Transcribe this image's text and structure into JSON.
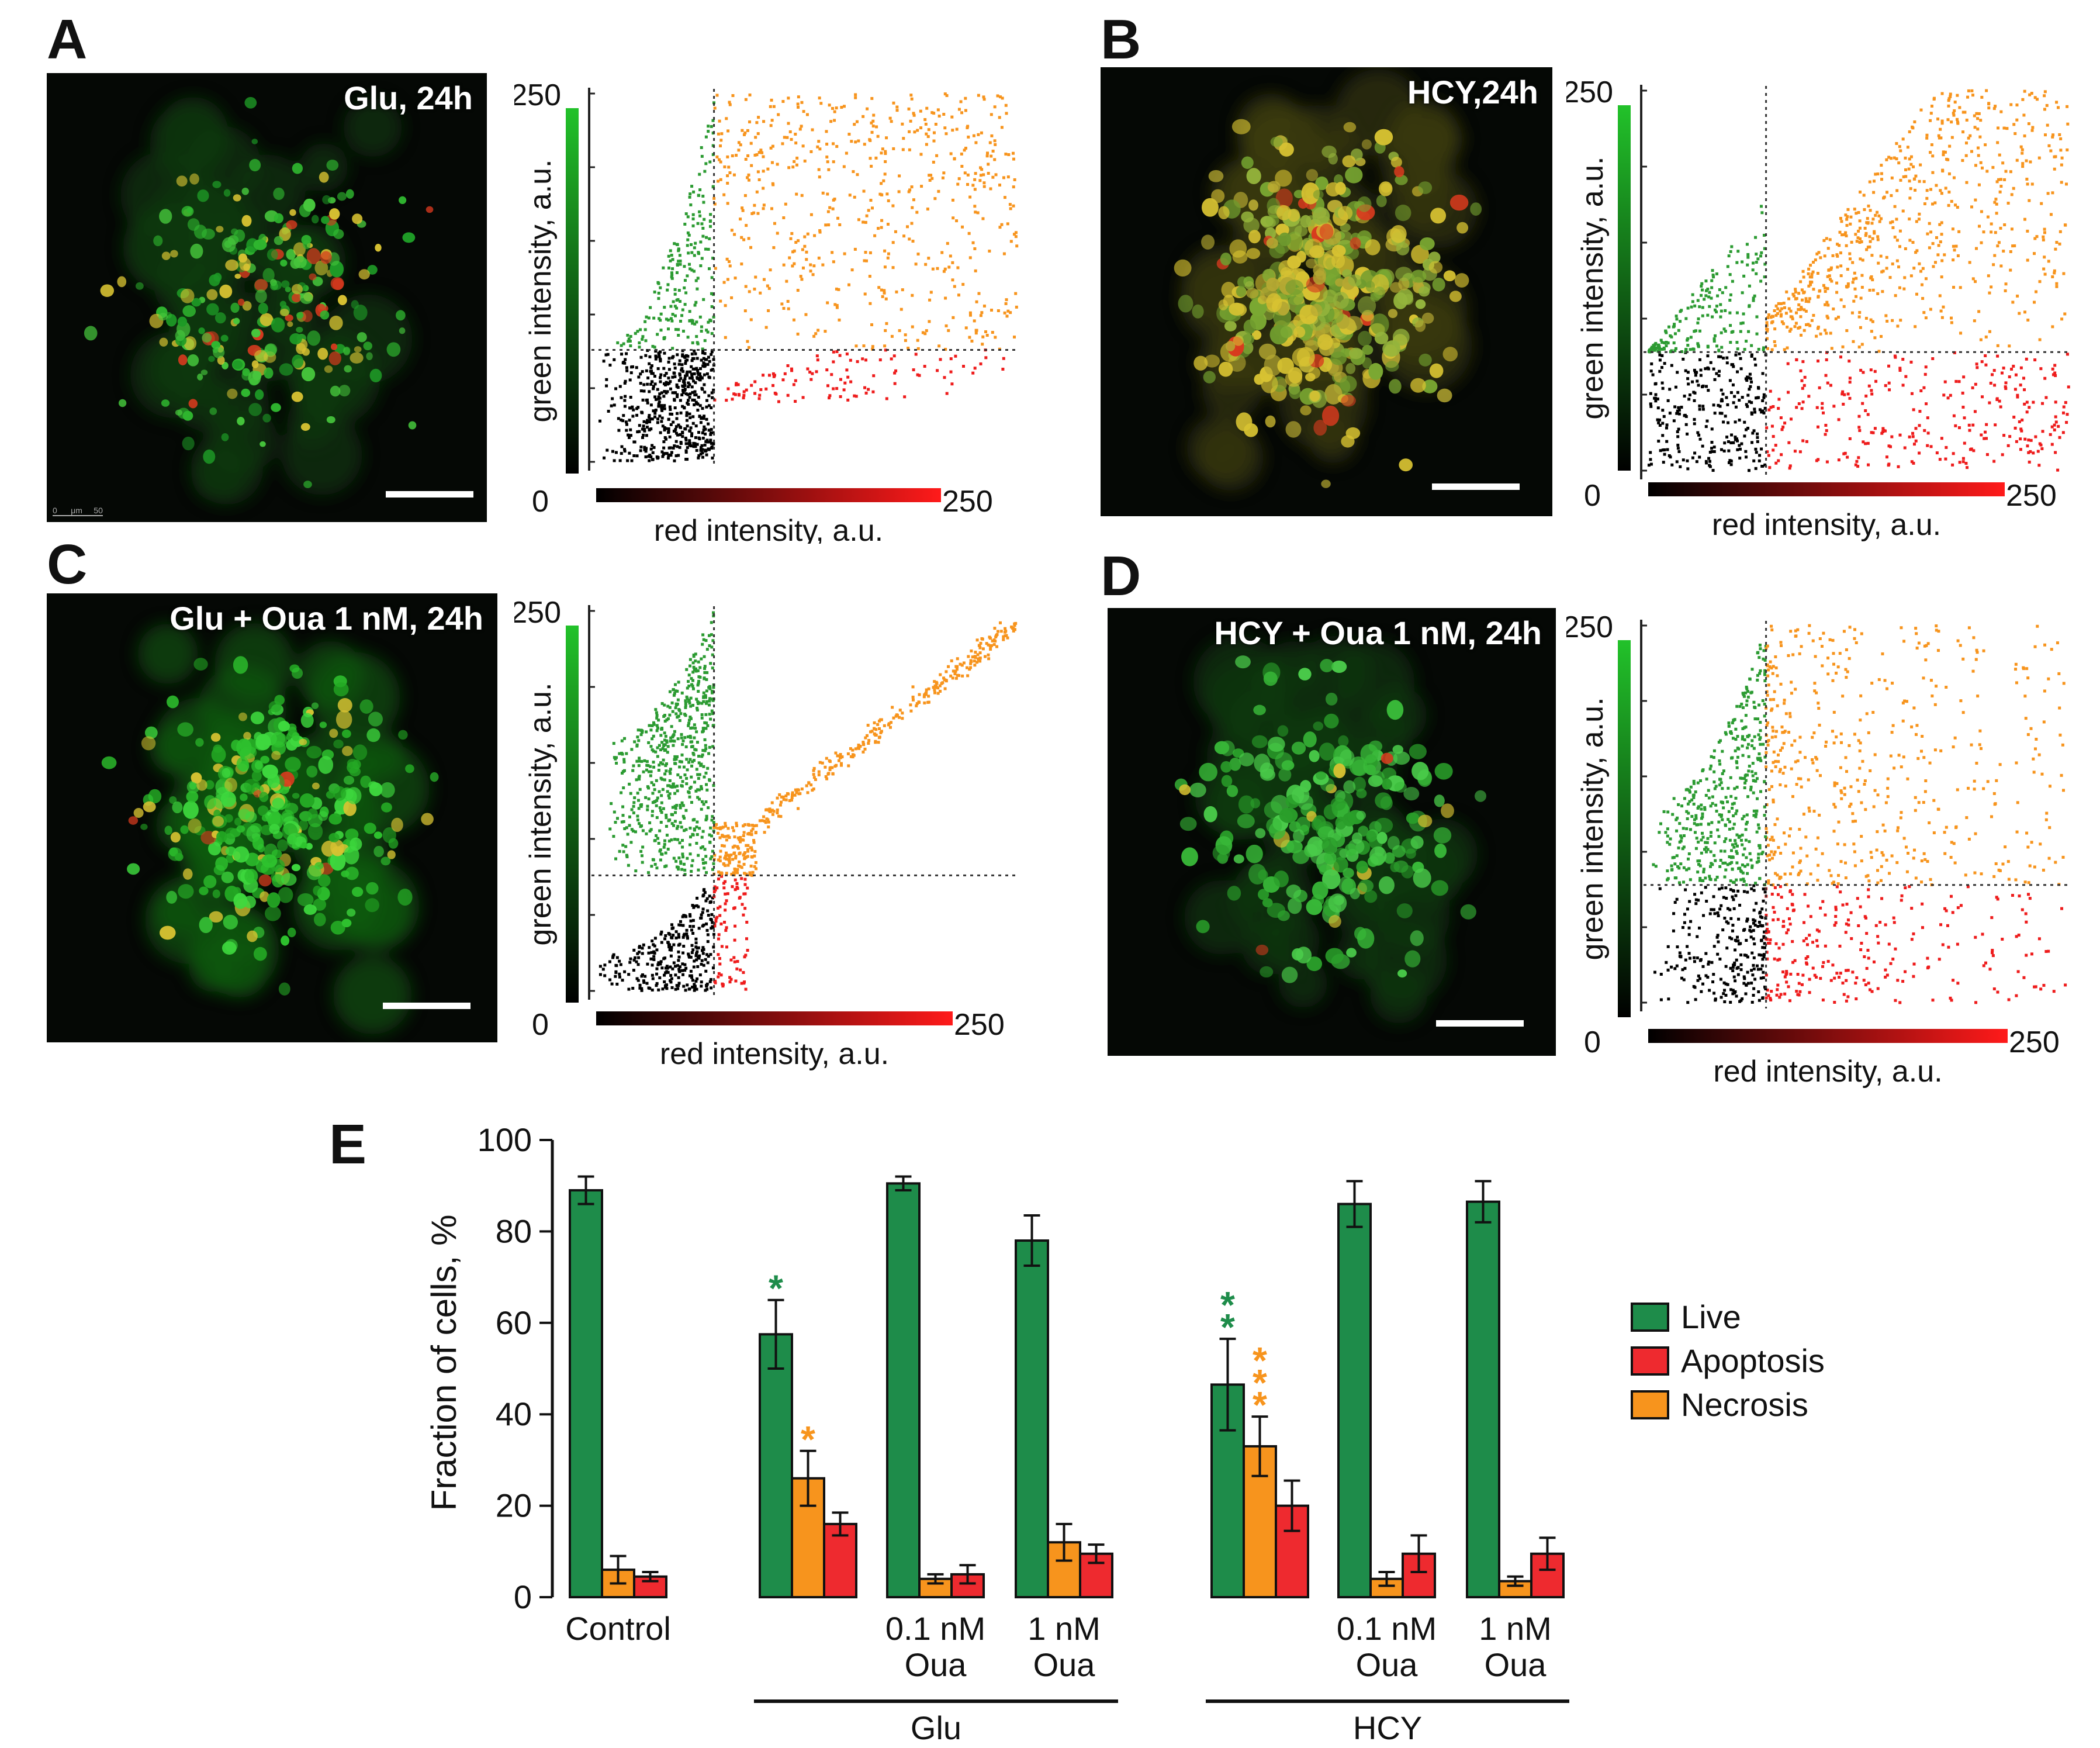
{
  "panels": [
    {
      "letter": "A",
      "micro_title": "Glu, 24h",
      "has_ruler": true,
      "ruler_text": "0      μm     50",
      "scatter": {
        "xlabel": "red intensity, a.u.",
        "ylabel": "green intensity, a.u.",
        "min_label": "0",
        "max_label": "250",
        "threshold_x": 70,
        "threshold_y": 76,
        "pattern": "glu"
      }
    },
    {
      "letter": "B",
      "micro_title": "HCY,24h",
      "has_ruler": false,
      "scatter": {
        "xlabel": "red intensity, a.u.",
        "ylabel": "green intensity, a.u.",
        "min_label": "0",
        "max_label": "250",
        "threshold_x": 70,
        "threshold_y": 78,
        "pattern": "hcy"
      }
    },
    {
      "letter": "C",
      "micro_title": "Glu + Oua 1 nM, 24h",
      "has_ruler": false,
      "scatter": {
        "xlabel": "red intensity, a.u.",
        "ylabel": "green intensity, a.u.",
        "min_label": "0",
        "max_label": "250",
        "threshold_x": 70,
        "threshold_y": 76,
        "pattern": "glu_oua"
      }
    },
    {
      "letter": "D",
      "micro_title": "HCY + Oua 1 nM, 24h",
      "has_ruler": false,
      "scatter": {
        "xlabel": "red intensity, a.u.",
        "ylabel": "green intensity, a.u.",
        "min_label": "0",
        "max_label": "250",
        "threshold_x": 70,
        "threshold_y": 78,
        "pattern": "hcy_oua"
      }
    }
  ],
  "panel_e_letter": "E",
  "chart_data": {
    "type": "bar",
    "title": "",
    "ylabel": "Fraction of cells, %",
    "xlabel": "",
    "ylim": [
      0,
      100
    ],
    "yticks": [
      0,
      20,
      40,
      60,
      80,
      100
    ],
    "categories": [
      "Control",
      "Glu",
      "Glu + 0.1 nM Oua",
      "Glu + 1 nM Oua",
      "HCY",
      "HCY + 0.1 nM Oua",
      "HCY + 1 nM Oua"
    ],
    "category_labels": [
      [
        "Control"
      ],
      [],
      [
        "0.1 nM",
        "Oua"
      ],
      [
        "1 nM",
        "Oua"
      ],
      [],
      [
        "0.1 nM",
        "Oua"
      ],
      [
        "1 nM",
        "Oua"
      ]
    ],
    "groups": [
      {
        "label": "Glu",
        "from": 1,
        "to": 3
      },
      {
        "label": "HCY",
        "from": 4,
        "to": 6
      }
    ],
    "series": [
      {
        "name": "Live",
        "color": "#1e8c4a",
        "values": [
          89,
          57.5,
          90.5,
          78,
          46.5,
          86,
          86.5
        ],
        "errors": [
          3,
          7.5,
          1.5,
          5.5,
          10,
          5,
          4.5
        ]
      },
      {
        "name": "Necrosis",
        "color": "#f7941d",
        "values": [
          6,
          26,
          4,
          12,
          33,
          4,
          3.5
        ],
        "errors": [
          3,
          6,
          1,
          4,
          6.5,
          1.5,
          1
        ]
      },
      {
        "name": "Apoptosis",
        "color": "#ee2a2f",
        "values": [
          4.5,
          16,
          5,
          9.5,
          20,
          9.5,
          9.5
        ],
        "errors": [
          1,
          2.5,
          2,
          2,
          5.5,
          4,
          3.5
        ]
      }
    ],
    "legend_order": [
      "Live",
      "Apoptosis",
      "Necrosis"
    ],
    "legend_position": "right",
    "annotations": [
      {
        "category": 1,
        "series": "Live",
        "text": "*",
        "color": "#1e8c4a"
      },
      {
        "category": 1,
        "series": "Necrosis",
        "text": "*",
        "color": "#f7941d"
      },
      {
        "category": 4,
        "series": "Live",
        "text": "**",
        "color": "#1e8c4a"
      },
      {
        "category": 4,
        "series": "Necrosis",
        "text": "***",
        "color": "#f7941d"
      }
    ]
  },
  "colors": {
    "live": "#1e8c4a",
    "apoptosis": "#ee2a2f",
    "necrosis": "#f7941d",
    "scatter_live": "#2c9b32",
    "scatter_necrosis": "#f7941d",
    "scatter_apoptosis": "#ee1c1c",
    "scatter_dead": "#000000"
  }
}
